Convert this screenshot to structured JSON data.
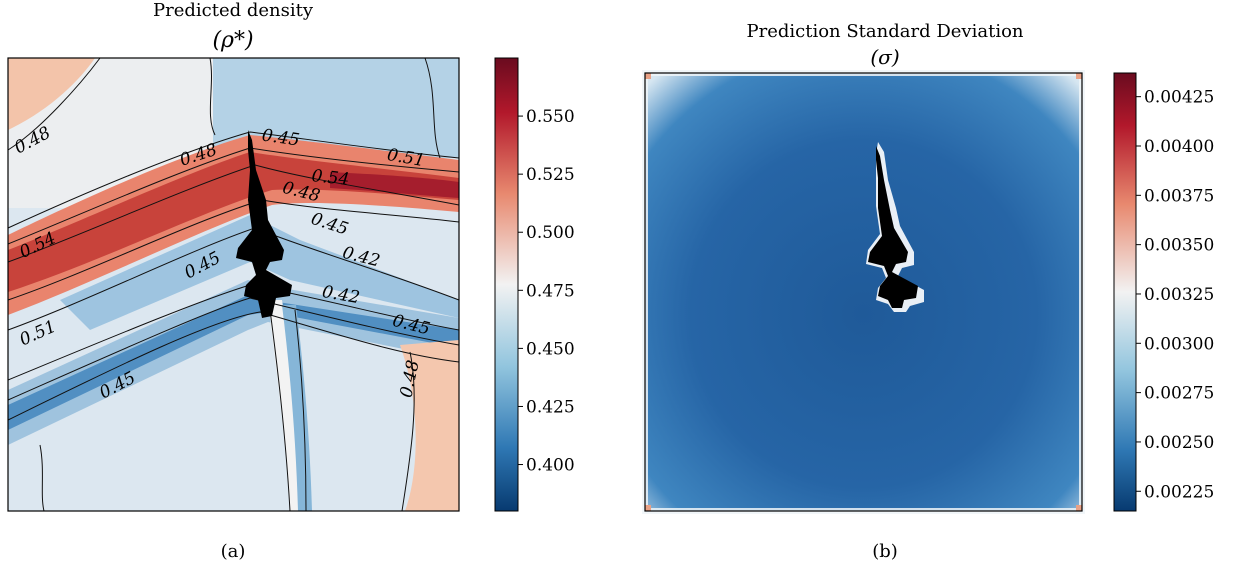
{
  "colormap": "RdBu_r",
  "colors": {
    "low": "#073a70",
    "mid": "#f2f2f2",
    "high": "#6a0b1f",
    "contour": "#111111",
    "body": "#000000"
  },
  "panels": [
    {
      "title_line1": "Predicted density",
      "title_line2": "(ρ*)",
      "caption": "(a)"
    },
    {
      "title_line1": "Prediction Standard Deviation",
      "title_line2": "(σ)",
      "caption": "(b)"
    }
  ],
  "chart_data": [
    {
      "type": "heatmap",
      "title": "Predicted density (ρ*)",
      "colorbar": {
        "range": [
          0.38,
          0.575
        ],
        "ticks": [
          "0.400",
          "0.425",
          "0.450",
          "0.475",
          "0.500",
          "0.525",
          "0.550"
        ]
      },
      "contour_levels": [
        "0.42",
        "0.45",
        "0.48",
        "0.51",
        "0.54"
      ],
      "contour_labels": [
        {
          "text": "0.48"
        },
        {
          "text": "0.48"
        },
        {
          "text": "0.45"
        },
        {
          "text": "0.51"
        },
        {
          "text": "0.54"
        },
        {
          "text": "0.48"
        },
        {
          "text": "0.54"
        },
        {
          "text": "0.45"
        },
        {
          "text": "0.45"
        },
        {
          "text": "0.42"
        },
        {
          "text": "0.42"
        },
        {
          "text": "0.45"
        },
        {
          "text": "0.51"
        },
        {
          "text": "0.45"
        },
        {
          "text": "0.48"
        }
      ]
    },
    {
      "type": "heatmap",
      "title": "Prediction Standard Deviation (σ)",
      "colorbar": {
        "range": [
          0.00215,
          0.00437
        ],
        "ticks": [
          "0.00225",
          "0.00250",
          "0.00275",
          "0.00300",
          "0.00325",
          "0.00350",
          "0.00375",
          "0.00400",
          "0.00425"
        ]
      }
    }
  ]
}
